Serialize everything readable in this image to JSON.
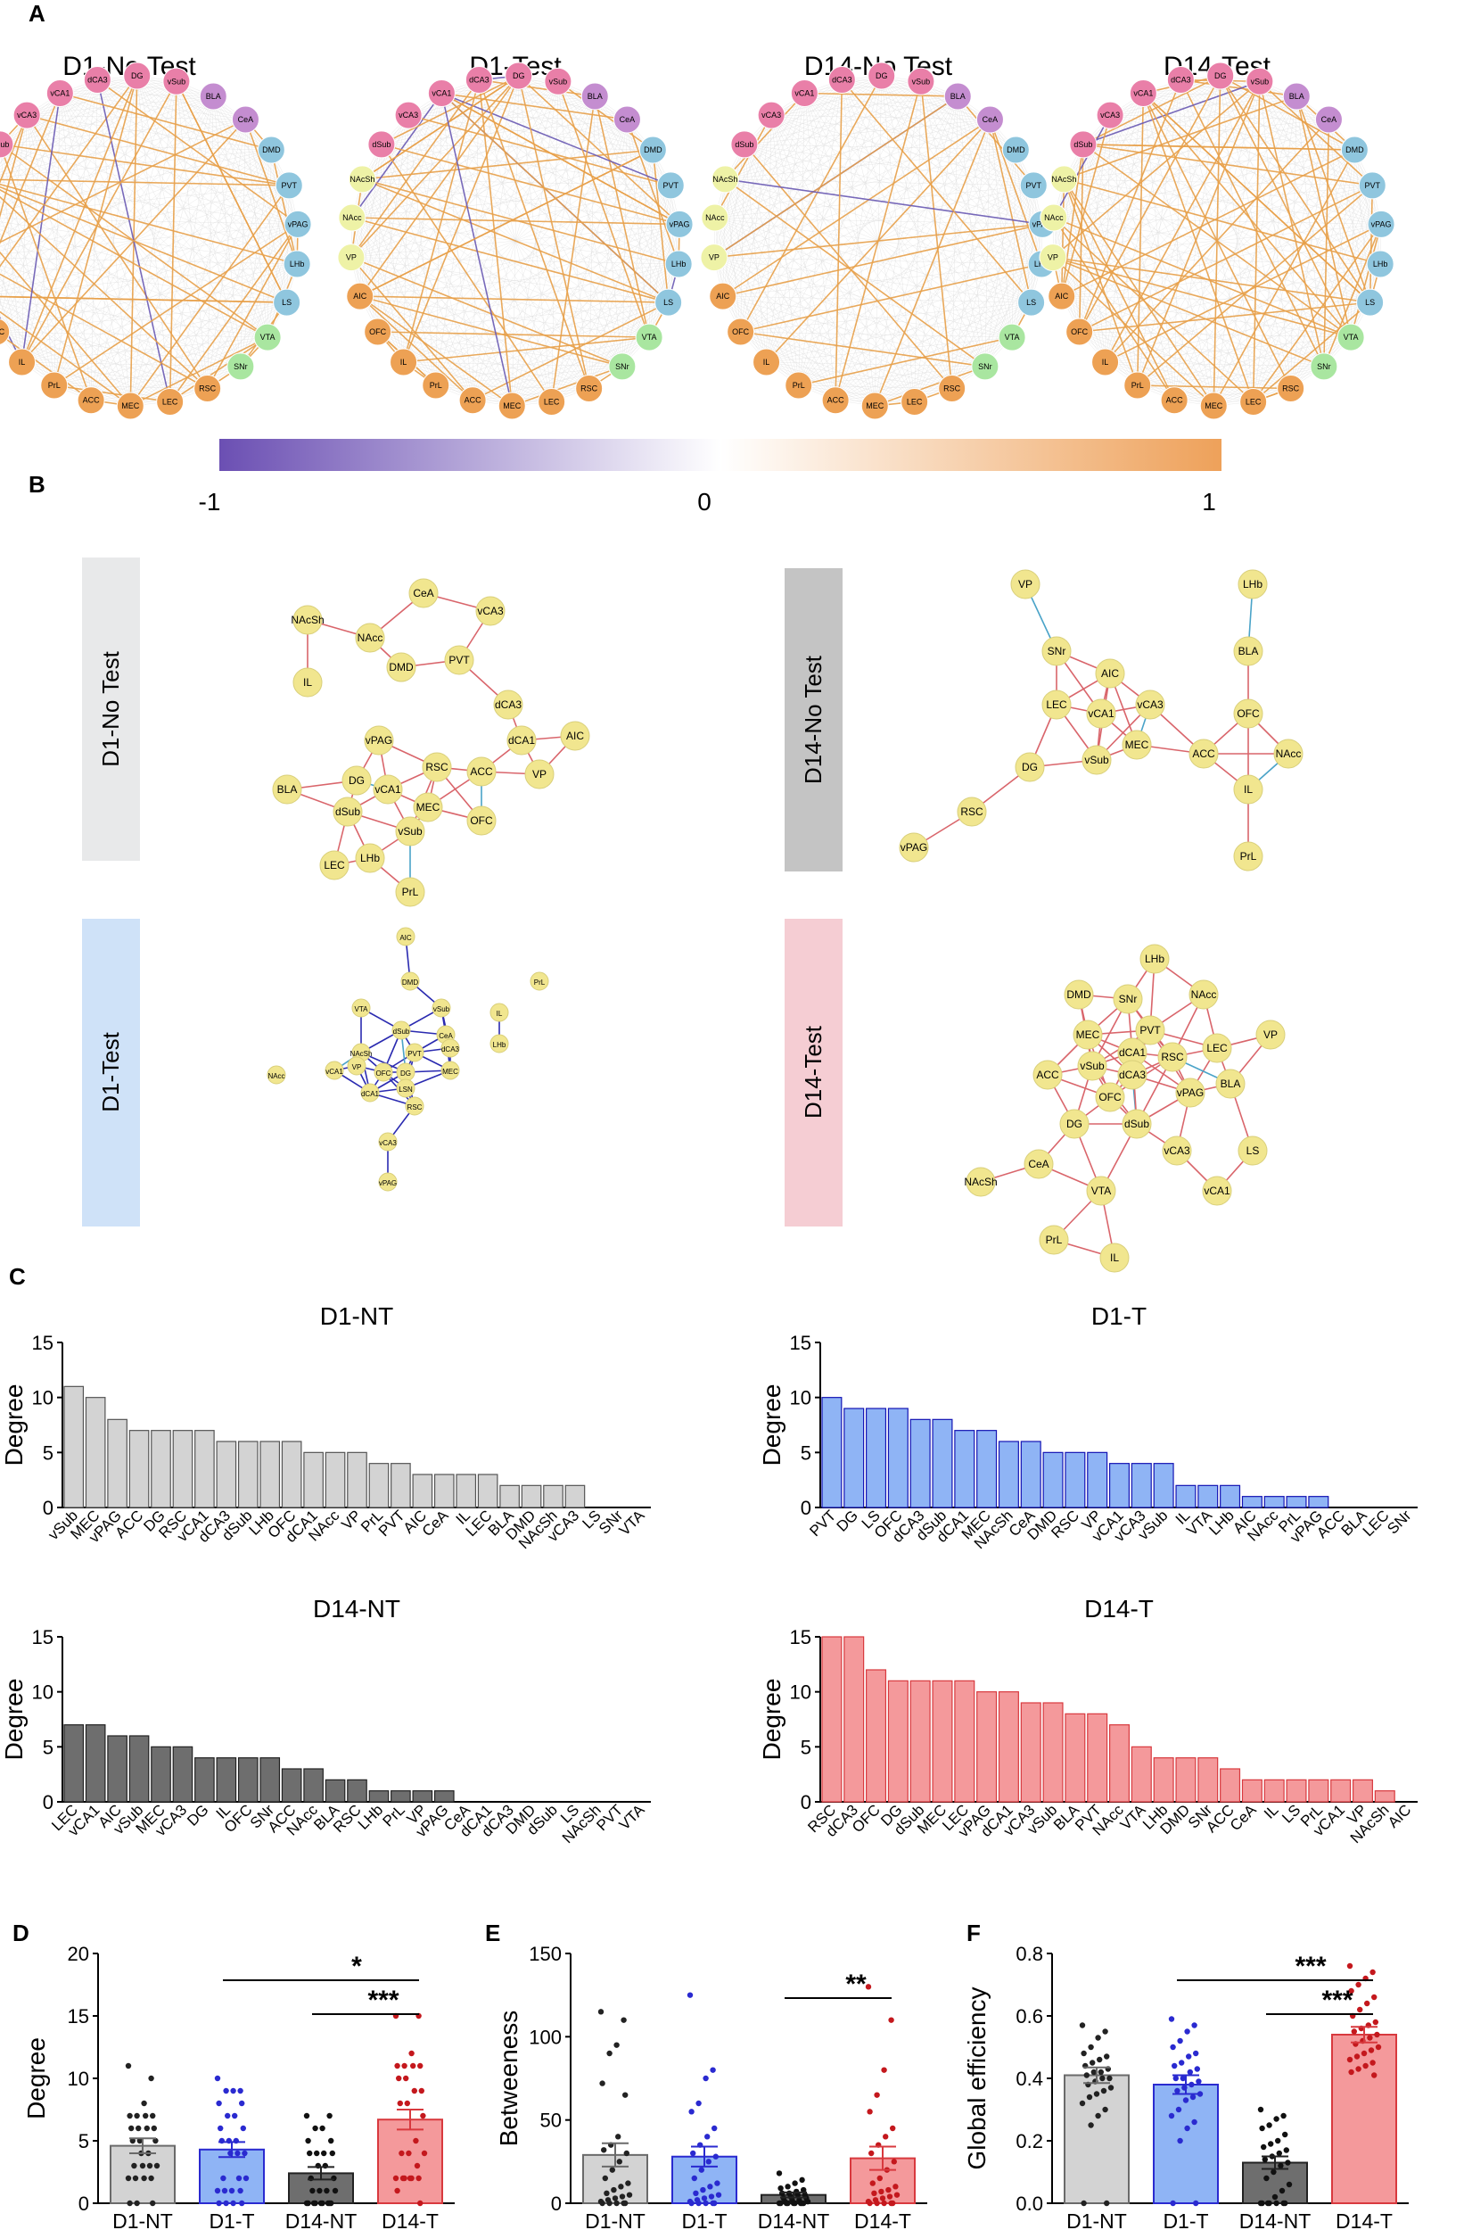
{
  "panels": {
    "A": "A",
    "B": "B",
    "C": "C",
    "D": "D",
    "E": "E",
    "F": "F"
  },
  "colors": {
    "limbic": "#e97fa8",
    "amyg": "#c48dd0",
    "thal": "#8fc6de",
    "vta": "#a9e6a0",
    "striatum": "#eef2a6",
    "cortex": "#eda154",
    "pos_edge": "#e8a14b",
    "neg_edge": "#6b5bb4",
    "d1nt": "#d3d3d3",
    "d1t": "#8fb4f5",
    "d14nt": "#6e6e6e",
    "d14t": "#f4999b",
    "d1t_edge": "#2a2ab0",
    "d14t_edge": "#d8393e",
    "bnode": "#f1e68f"
  },
  "network_nodes": [
    "vSub",
    "BLA",
    "CeA",
    "DMD",
    "PVT",
    "vPAG",
    "LHb",
    "LS",
    "VTA",
    "SNr",
    "RSC",
    "LEC",
    "MEC",
    "ACC",
    "PrL",
    "IL",
    "OFC",
    "AIC",
    "VP",
    "NAcc",
    "NAcSh",
    "dSub",
    "vCA3",
    "vCA1",
    "dCA3",
    "DG"
  ],
  "network_titles": [
    "D1-No Test",
    "D1-Test",
    "D14-No Test",
    "D14-Test"
  ],
  "colorbar": {
    "min": "-1",
    "mid": "0",
    "max": "1"
  },
  "panel_b": {
    "labels": [
      "D1-No Test",
      "D14-No Test",
      "D1-Test",
      "D14-Test"
    ],
    "networks": [
      {
        "nodes": [
          "CeA",
          "vCA3",
          "NAcSh",
          "NAcc",
          "DMD",
          "PVT",
          "IL",
          "dCA3",
          "AIC",
          "vPAG",
          "dCA1",
          "RSC",
          "ACC",
          "VP",
          "BLA",
          "DG",
          "vCA1",
          "MEC",
          "OFC",
          "dSub",
          "vSub",
          "LEC",
          "LHb",
          "PrL"
        ]
      },
      {
        "nodes": [
          "VP",
          "LHb",
          "SNr",
          "AIC",
          "BLA",
          "LEC",
          "vCA1",
          "vCA3",
          "OFC",
          "MEC",
          "ACC",
          "NAcc",
          "DG",
          "vSub",
          "IL",
          "RSC",
          "vPAG",
          "PrL"
        ]
      },
      {
        "nodes": [
          "AIC",
          "PrL",
          "DMD",
          "VTA",
          "vSub",
          "IL",
          "dSub",
          "CeA",
          "dCA3",
          "LHb",
          "NAcSh",
          "PVT",
          "MEC",
          "vCA1",
          "VP",
          "OFC",
          "DG",
          "NAcc",
          "LSN",
          "dCA1",
          "RSC",
          "vCA3",
          "vPAG"
        ]
      },
      {
        "nodes": [
          "LHb",
          "DMD",
          "SNr",
          "NAcc",
          "MEC",
          "PVT",
          "dCA1",
          "RSC",
          "LEC",
          "VP",
          "vSub",
          "dCA3",
          "ACC",
          "OFC",
          "vPAG",
          "BLA",
          "DG",
          "dSub",
          "vCA3",
          "LS",
          "NAcSh",
          "CeA",
          "VTA",
          "vCA1",
          "PrL",
          "IL"
        ]
      }
    ]
  },
  "chart_data": [
    {
      "type": "bar",
      "title": "D1-NT",
      "ylabel": "Degree",
      "ylim": [
        0,
        15
      ],
      "yticks": [
        0,
        5,
        10,
        15
      ],
      "categories": [
        "vSub",
        "MEC",
        "vPAG",
        "ACC",
        "DG",
        "RSC",
        "vCA1",
        "dCA3",
        "dSub",
        "LHb",
        "OFC",
        "dCA1",
        "NAcc",
        "VP",
        "PrL",
        "PVT",
        "AIC",
        "CeA",
        "IL",
        "LEC",
        "BLA",
        "DMD",
        "NAcSh",
        "vCA3",
        "LS",
        "SNr",
        "VTA"
      ],
      "values": [
        11,
        10,
        8,
        7,
        7,
        7,
        7,
        6,
        6,
        6,
        6,
        5,
        5,
        5,
        4,
        4,
        3,
        3,
        3,
        3,
        2,
        2,
        2,
        2,
        0,
        0,
        0
      ]
    },
    {
      "type": "bar",
      "title": "D1-T",
      "ylabel": "Degree",
      "ylim": [
        0,
        15
      ],
      "yticks": [
        0,
        5,
        10,
        15
      ],
      "categories": [
        "PVT",
        "DG",
        "LS",
        "OFC",
        "dCA3",
        "dSub",
        "dCA1",
        "MEC",
        "NAcSh",
        "CeA",
        "DMD",
        "RSC",
        "VP",
        "vCA1",
        "vCA3",
        "vSub",
        "IL",
        "VTA",
        "LHb",
        "AIC",
        "NAcc",
        "PrL",
        "vPAG",
        "ACC",
        "BLA",
        "LEC",
        "SNr"
      ],
      "values": [
        10,
        9,
        9,
        9,
        8,
        8,
        7,
        7,
        6,
        6,
        5,
        5,
        5,
        4,
        4,
        4,
        2,
        2,
        2,
        1,
        1,
        1,
        1,
        0,
        0,
        0,
        0
      ]
    },
    {
      "type": "bar",
      "title": "D14-NT",
      "ylabel": "Degree",
      "ylim": [
        0,
        15
      ],
      "yticks": [
        0,
        5,
        10,
        15
      ],
      "categories": [
        "LEC",
        "vCA1",
        "AIC",
        "vSub",
        "MEC",
        "vCA3",
        "DG",
        "IL",
        "OFC",
        "SNr",
        "ACC",
        "NAcc",
        "BLA",
        "RSC",
        "LHb",
        "PrL",
        "VP",
        "vPAG",
        "CeA",
        "dCA1",
        "dCA3",
        "DMD",
        "dSub",
        "LS",
        "NAcSh",
        "PVT",
        "VTA"
      ],
      "values": [
        7,
        7,
        6,
        6,
        5,
        5,
        4,
        4,
        4,
        4,
        3,
        3,
        2,
        2,
        1,
        1,
        1,
        1,
        0,
        0,
        0,
        0,
        0,
        0,
        0,
        0,
        0
      ]
    },
    {
      "type": "bar",
      "title": "D14-T",
      "ylabel": "Degree",
      "ylim": [
        0,
        15
      ],
      "yticks": [
        0,
        5,
        10,
        15
      ],
      "categories": [
        "RSC",
        "dCA3",
        "OFC",
        "DG",
        "dSub",
        "MEC",
        "LEC",
        "vPAG",
        "dCA1",
        "vCA3",
        "vSub",
        "BLA",
        "PVT",
        "NAcc",
        "VTA",
        "LHb",
        "DMD",
        "SNr",
        "ACC",
        "CeA",
        "IL",
        "LS",
        "PrL",
        "vCA1",
        "VP",
        "NAcSh",
        "AIC"
      ],
      "values": [
        15,
        15,
        12,
        11,
        11,
        11,
        11,
        10,
        10,
        9,
        9,
        8,
        8,
        7,
        5,
        4,
        4,
        4,
        3,
        2,
        2,
        2,
        2,
        2,
        2,
        1,
        0
      ]
    },
    {
      "type": "bar",
      "title": "",
      "ylabel": "Degree",
      "ylim": [
        0,
        20
      ],
      "yticks": [
        0,
        5,
        10,
        15,
        20
      ],
      "categories": [
        "D1-NT",
        "D1-T",
        "D14-NT",
        "D14-T"
      ],
      "values": [
        4.6,
        4.3,
        2.4,
        6.7
      ],
      "errors": [
        0.6,
        0.6,
        0.5,
        0.8
      ],
      "significance": [
        {
          "from": "D1-T",
          "to": "D14-T",
          "label": "*"
        },
        {
          "from": "D14-NT",
          "to": "D14-T",
          "label": "***"
        }
      ],
      "points": [
        [
          11,
          10,
          8,
          7,
          7,
          7,
          7,
          6,
          6,
          6,
          6,
          5,
          5,
          5,
          4,
          4,
          3,
          3,
          3,
          3,
          2,
          2,
          2,
          2,
          0,
          0,
          0
        ],
        [
          10,
          9,
          9,
          9,
          8,
          8,
          7,
          7,
          6,
          6,
          5,
          5,
          5,
          4,
          4,
          4,
          2,
          2,
          2,
          1,
          1,
          1,
          1,
          0,
          0,
          0,
          0
        ],
        [
          7,
          7,
          6,
          6,
          5,
          5,
          4,
          4,
          4,
          4,
          3,
          3,
          2,
          2,
          1,
          1,
          1,
          1,
          0,
          0,
          0,
          0,
          0,
          0,
          0,
          0,
          0
        ],
        [
          15,
          15,
          12,
          11,
          11,
          11,
          11,
          10,
          10,
          9,
          9,
          8,
          8,
          7,
          5,
          4,
          4,
          4,
          3,
          2,
          2,
          2,
          2,
          2,
          2,
          1,
          0
        ]
      ]
    },
    {
      "type": "bar",
      "title": "",
      "ylabel": "Betweeness",
      "ylim": [
        0,
        150
      ],
      "yticks": [
        0,
        50,
        100,
        150
      ],
      "categories": [
        "D1-NT",
        "D1-T",
        "D14-NT",
        "D14-T"
      ],
      "values": [
        29,
        28,
        5,
        27
      ],
      "errors": [
        7,
        6,
        1.5,
        7
      ],
      "significance": [
        {
          "from": "D14-NT",
          "to": "D14-T",
          "label": "**"
        }
      ],
      "points": [
        [
          115,
          110,
          95,
          90,
          72,
          65,
          40,
          35,
          32,
          30,
          25,
          20,
          15,
          12,
          10,
          8,
          6,
          5,
          4,
          3,
          2,
          1,
          0,
          0,
          0,
          0,
          0
        ],
        [
          125,
          80,
          75,
          60,
          55,
          45,
          40,
          35,
          30,
          28,
          25,
          20,
          15,
          12,
          10,
          8,
          6,
          5,
          4,
          3,
          2,
          1,
          0,
          0,
          0,
          0,
          0
        ],
        [
          18,
          14,
          12,
          10,
          9,
          8,
          7,
          6,
          6,
          5,
          5,
          4,
          3,
          3,
          2,
          2,
          1,
          1,
          0,
          0,
          0,
          0,
          0,
          0,
          0,
          0,
          0
        ],
        [
          130,
          110,
          80,
          65,
          55,
          45,
          40,
          35,
          30,
          25,
          20,
          15,
          12,
          10,
          8,
          7,
          6,
          5,
          4,
          3,
          2,
          1,
          0,
          0,
          0,
          0,
          0
        ]
      ]
    },
    {
      "type": "bar",
      "title": "",
      "ylabel": "Global efficiency",
      "ylim": [
        0,
        0.8
      ],
      "yticks": [
        0.0,
        0.2,
        0.4,
        0.6,
        0.8
      ],
      "categories": [
        "D1-NT",
        "D1-T",
        "D14-NT",
        "D14-T"
      ],
      "values": [
        0.41,
        0.38,
        0.13,
        0.54
      ],
      "errors": [
        0.025,
        0.03,
        0.02,
        0.025
      ],
      "significance": [
        {
          "from": "D1-T",
          "to": "D14-T",
          "label": "***"
        },
        {
          "from": "D14-NT",
          "to": "D14-T",
          "label": "***"
        }
      ],
      "points": [
        [
          0.57,
          0.55,
          0.53,
          0.5,
          0.48,
          0.47,
          0.46,
          0.45,
          0.44,
          0.43,
          0.42,
          0.42,
          0.41,
          0.4,
          0.4,
          0.39,
          0.38,
          0.37,
          0.36,
          0.35,
          0.34,
          0.32,
          0.3,
          0.28,
          0.25,
          0.0,
          0.0
        ],
        [
          0.59,
          0.57,
          0.55,
          0.52,
          0.5,
          0.48,
          0.47,
          0.45,
          0.44,
          0.43,
          0.42,
          0.4,
          0.4,
          0.39,
          0.38,
          0.37,
          0.36,
          0.35,
          0.34,
          0.33,
          0.3,
          0.28,
          0.26,
          0.24,
          0.2,
          0.0,
          0.0
        ],
        [
          0.3,
          0.28,
          0.27,
          0.25,
          0.24,
          0.22,
          0.2,
          0.19,
          0.18,
          0.17,
          0.16,
          0.15,
          0.14,
          0.13,
          0.12,
          0.1,
          0.08,
          0.06,
          0.04,
          0.02,
          0.0,
          0.0,
          0.0,
          0.0,
          0.0,
          0.0,
          0.0
        ],
        [
          0.76,
          0.74,
          0.72,
          0.7,
          0.68,
          0.66,
          0.64,
          0.62,
          0.6,
          0.58,
          0.57,
          0.56,
          0.55,
          0.54,
          0.53,
          0.52,
          0.51,
          0.5,
          0.49,
          0.48,
          0.47,
          0.46,
          0.45,
          0.44,
          0.43,
          0.42,
          0.41
        ]
      ]
    }
  ]
}
